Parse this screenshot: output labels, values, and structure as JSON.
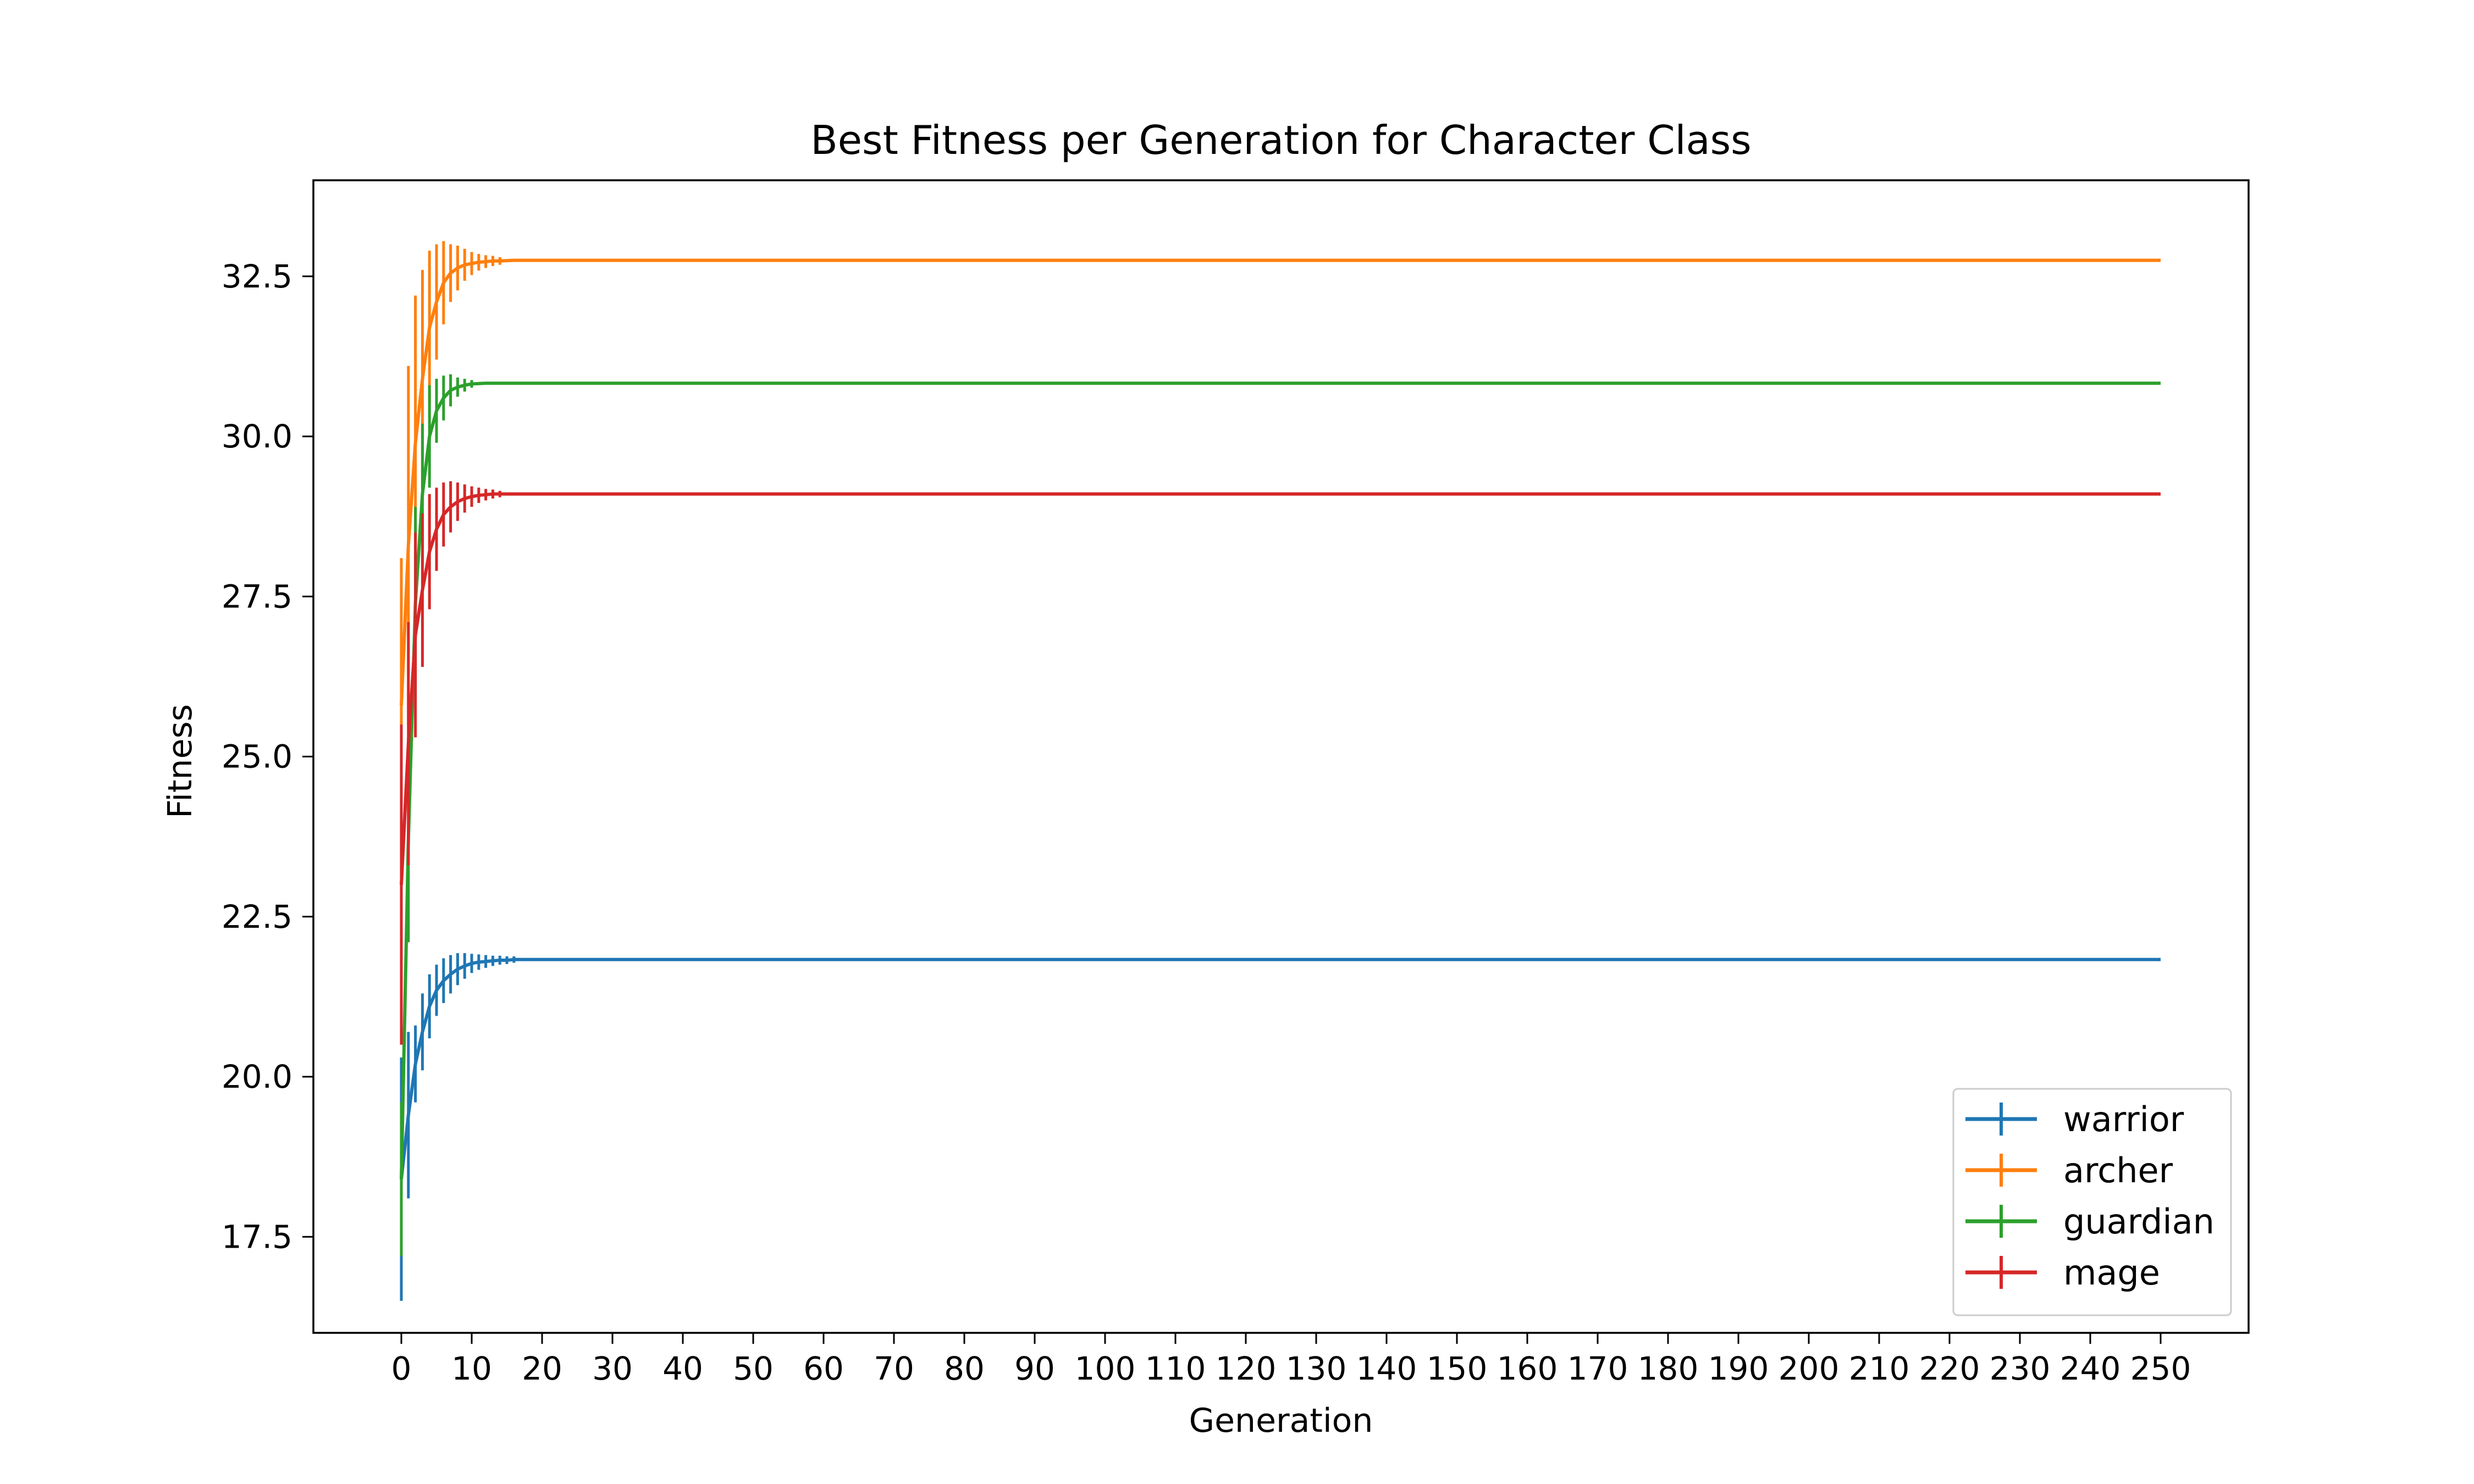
{
  "chart_data": {
    "type": "line",
    "title": "Best Fitness per Generation for Character Class",
    "xlabel": "Generation",
    "ylabel": "Fitness",
    "xlim": [
      -12.5,
      262.5
    ],
    "ylim": [
      16.0,
      34.0
    ],
    "xticks": [
      0,
      10,
      20,
      30,
      40,
      50,
      60,
      70,
      80,
      90,
      100,
      110,
      120,
      130,
      140,
      150,
      160,
      170,
      180,
      190,
      200,
      210,
      220,
      230,
      240,
      250
    ],
    "xtick_labels": [
      "0",
      "10",
      "20",
      "30",
      "40",
      "50",
      "60",
      "70",
      "80",
      "90",
      "100",
      "110",
      "120",
      "130",
      "140",
      "150",
      "160",
      "170",
      "180",
      "190",
      "200",
      "210",
      "220",
      "230",
      "240",
      "250"
    ],
    "yticks": [
      17.5,
      20.0,
      22.5,
      25.0,
      27.5,
      30.0,
      32.5
    ],
    "ytick_labels": [
      "17.5",
      "20.0",
      "22.5",
      "25.0",
      "27.5",
      "30.0",
      "32.5"
    ],
    "grid": false,
    "legend_position": "lower-right",
    "x_end": 250,
    "error_bars": true,
    "series": [
      {
        "name": "warrior",
        "color": "#1f77b4",
        "points": [
          {
            "x": 0,
            "y": 18.4,
            "err": 1.9
          },
          {
            "x": 1,
            "y": 19.4,
            "err": 1.3
          },
          {
            "x": 2,
            "y": 20.2,
            "err": 0.6
          },
          {
            "x": 3,
            "y": 20.7,
            "err": 0.6
          },
          {
            "x": 4,
            "y": 21.1,
            "err": 0.5
          },
          {
            "x": 5,
            "y": 21.35,
            "err": 0.4
          },
          {
            "x": 6,
            "y": 21.5,
            "err": 0.35
          },
          {
            "x": 7,
            "y": 21.6,
            "err": 0.3
          },
          {
            "x": 8,
            "y": 21.68,
            "err": 0.25
          },
          {
            "x": 9,
            "y": 21.73,
            "err": 0.2
          },
          {
            "x": 10,
            "y": 21.77,
            "err": 0.15
          },
          {
            "x": 11,
            "y": 21.79,
            "err": 0.12
          },
          {
            "x": 12,
            "y": 21.8,
            "err": 0.1
          },
          {
            "x": 13,
            "y": 21.81,
            "err": 0.08
          },
          {
            "x": 14,
            "y": 21.82,
            "err": 0.07
          },
          {
            "x": 15,
            "y": 21.82,
            "err": 0.06
          },
          {
            "x": 16,
            "y": 21.83,
            "err": 0.05
          },
          {
            "x": 17,
            "y": 21.83,
            "err": 0
          },
          {
            "x": 20,
            "y": 21.83,
            "err": 0
          },
          {
            "x": 250,
            "y": 21.83,
            "err": 0
          }
        ]
      },
      {
        "name": "archer",
        "color": "#ff7f0e",
        "points": [
          {
            "x": 0,
            "y": 25.8,
            "err": 2.3
          },
          {
            "x": 1,
            "y": 28.3,
            "err": 2.8
          },
          {
            "x": 2,
            "y": 29.9,
            "err": 2.3
          },
          {
            "x": 3,
            "y": 30.9,
            "err": 1.7
          },
          {
            "x": 4,
            "y": 31.7,
            "err": 1.2
          },
          {
            "x": 5,
            "y": 32.1,
            "err": 0.9
          },
          {
            "x": 6,
            "y": 32.4,
            "err": 0.65
          },
          {
            "x": 7,
            "y": 32.55,
            "err": 0.45
          },
          {
            "x": 8,
            "y": 32.63,
            "err": 0.35
          },
          {
            "x": 9,
            "y": 32.68,
            "err": 0.25
          },
          {
            "x": 10,
            "y": 32.7,
            "err": 0.18
          },
          {
            "x": 11,
            "y": 32.72,
            "err": 0.13
          },
          {
            "x": 12,
            "y": 32.73,
            "err": 0.1
          },
          {
            "x": 13,
            "y": 32.74,
            "err": 0.08
          },
          {
            "x": 14,
            "y": 32.74,
            "err": 0.06
          },
          {
            "x": 16,
            "y": 32.75,
            "err": 0
          },
          {
            "x": 250,
            "y": 32.75,
            "err": 0
          }
        ]
      },
      {
        "name": "guardian",
        "color": "#2ca02c",
        "points": [
          {
            "x": 0,
            "y": 18.4,
            "err": 1.2
          },
          {
            "x": 1,
            "y": 23.7,
            "err": 1.6
          },
          {
            "x": 2,
            "y": 27.4,
            "err": 1.5
          },
          {
            "x": 3,
            "y": 29.1,
            "err": 1.1
          },
          {
            "x": 4,
            "y": 30.0,
            "err": 0.8
          },
          {
            "x": 5,
            "y": 30.4,
            "err": 0.5
          },
          {
            "x": 6,
            "y": 30.6,
            "err": 0.35
          },
          {
            "x": 7,
            "y": 30.72,
            "err": 0.25
          },
          {
            "x": 8,
            "y": 30.77,
            "err": 0.15
          },
          {
            "x": 9,
            "y": 30.8,
            "err": 0.1
          },
          {
            "x": 10,
            "y": 30.82,
            "err": 0.06
          },
          {
            "x": 12,
            "y": 30.83,
            "err": 0
          },
          {
            "x": 250,
            "y": 30.83,
            "err": 0
          }
        ]
      },
      {
        "name": "mage",
        "color": "#d62728",
        "points": [
          {
            "x": 0,
            "y": 23.0,
            "err": 2.5
          },
          {
            "x": 1,
            "y": 25.2,
            "err": 1.9
          },
          {
            "x": 2,
            "y": 26.9,
            "err": 1.6
          },
          {
            "x": 3,
            "y": 27.6,
            "err": 1.2
          },
          {
            "x": 4,
            "y": 28.2,
            "err": 0.9
          },
          {
            "x": 5,
            "y": 28.55,
            "err": 0.65
          },
          {
            "x": 6,
            "y": 28.78,
            "err": 0.5
          },
          {
            "x": 7,
            "y": 28.9,
            "err": 0.4
          },
          {
            "x": 8,
            "y": 28.98,
            "err": 0.3
          },
          {
            "x": 9,
            "y": 29.03,
            "err": 0.22
          },
          {
            "x": 10,
            "y": 29.06,
            "err": 0.16
          },
          {
            "x": 11,
            "y": 29.08,
            "err": 0.12
          },
          {
            "x": 12,
            "y": 29.09,
            "err": 0.09
          },
          {
            "x": 13,
            "y": 29.1,
            "err": 0.07
          },
          {
            "x": 14,
            "y": 29.1,
            "err": 0.05
          },
          {
            "x": 15,
            "y": 29.1,
            "err": 0
          },
          {
            "x": 250,
            "y": 29.1,
            "err": 0
          }
        ]
      }
    ]
  }
}
